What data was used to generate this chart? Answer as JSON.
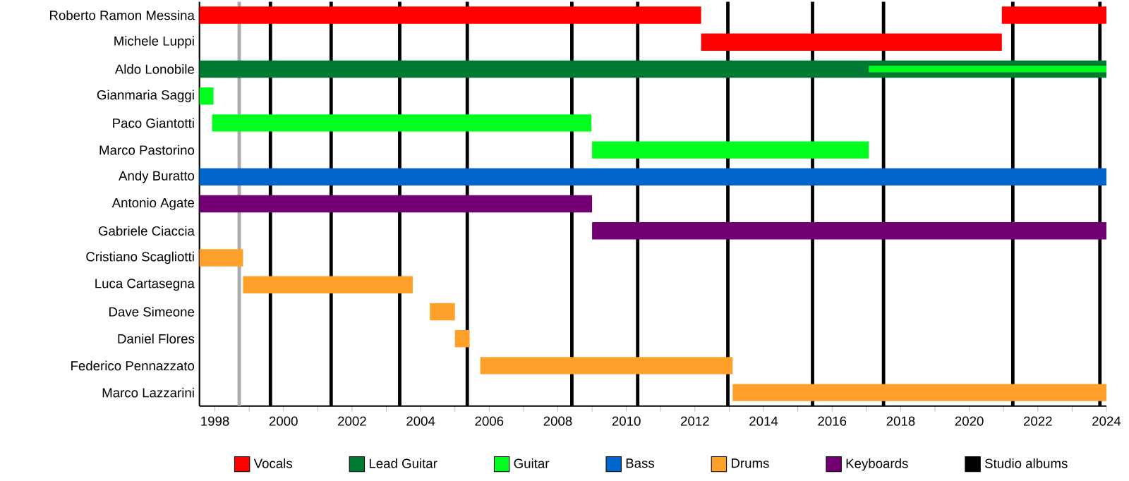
{
  "chart_data": {
    "type": "bar",
    "orientation": "horizontal",
    "categories": [
      "Roberto Ramon Messina",
      "Michele Luppi",
      "Aldo Lonobile",
      "Gianmaria Saggi",
      "Paco Giantotti",
      "Marco Pastorino",
      "Andy Buratto",
      "Antonio Agate",
      "Gabriele Ciaccia",
      "Cristiano Scagliotti",
      "Luca Cartasegna",
      "Dave Simeone",
      "Daniel Flores",
      "Federico Pennazzato",
      "Marco Lazzarini"
    ],
    "series": [
      {
        "name": "Vocals",
        "color": "#ff0000",
        "values": [
          14.63,
          8.77,
          null,
          null,
          null,
          null,
          null,
          null,
          null,
          null,
          null,
          null,
          null,
          null,
          null
        ],
        "base": [
          1997.55,
          2012.18,
          null,
          null,
          null,
          null,
          null,
          null,
          null,
          null,
          null,
          null,
          null,
          null,
          null
        ]
      },
      {
        "color": "#ff0000",
        "values": [
          3.05,
          null,
          null,
          null,
          null,
          null,
          null,
          null,
          null,
          null,
          null,
          null,
          null,
          null,
          null
        ],
        "base": [
          2020.95,
          null,
          null,
          null,
          null,
          null,
          null,
          null,
          null,
          null,
          null,
          null,
          null,
          null,
          null
        ]
      },
      {
        "name": "Lead Guitar",
        "color": "#007a33",
        "values": [
          null,
          null,
          26.45,
          null,
          null,
          null,
          null,
          null,
          null,
          null,
          null,
          null,
          null,
          null,
          null
        ],
        "base": [
          null,
          null,
          1997.55,
          null,
          null,
          null,
          null,
          null,
          null,
          null,
          null,
          null,
          null,
          null,
          null
        ]
      },
      {
        "name": "Guitar",
        "color": "#00ff1f",
        "values": [
          null,
          null,
          6.93,
          0.41,
          11.06,
          8.07,
          null,
          null,
          null,
          null,
          null,
          null,
          null,
          null,
          null
        ],
        "base": [
          null,
          null,
          2017.07,
          1997.55,
          1997.92,
          2009.0,
          null,
          null,
          null,
          null,
          null,
          null,
          null,
          null,
          null
        ]
      },
      {
        "name": "Bass",
        "color": "#0066cc",
        "values": [
          null,
          null,
          null,
          null,
          null,
          null,
          26.45,
          null,
          null,
          null,
          null,
          null,
          null,
          null,
          null
        ],
        "base": [
          null,
          null,
          null,
          null,
          null,
          null,
          1997.55,
          null,
          null,
          null,
          null,
          null,
          null,
          null,
          null
        ]
      },
      {
        "name": "Drums",
        "color": "#ffa02a",
        "values": [
          null,
          null,
          null,
          null,
          null,
          null,
          null,
          null,
          null,
          1.27,
          4.95,
          0.73,
          0.43,
          7.36,
          10.9
        ],
        "base": [
          null,
          null,
          null,
          null,
          null,
          null,
          null,
          null,
          null,
          1997.55,
          1998.82,
          2004.27,
          2005.0,
          2005.74,
          2013.1
        ]
      },
      {
        "name": "Keyboards",
        "color": "#730073",
        "values": [
          null,
          null,
          null,
          null,
          null,
          null,
          null,
          11.45,
          15.0,
          null,
          null,
          null,
          null,
          null,
          null
        ],
        "base": [
          null,
          null,
          null,
          null,
          null,
          null,
          null,
          1997.55,
          2009.0,
          null,
          null,
          null,
          null,
          null,
          null
        ]
      }
    ],
    "xlim": [
      1997.55,
      2024
    ],
    "xticks": [
      1998,
      {
        "value": 1999,
        "label": null
      },
      2000,
      {
        "value": 2001,
        "label": null
      },
      2002,
      {
        "value": 2003,
        "label": null
      },
      2004,
      {
        "value": 2005,
        "label": null
      },
      2006,
      {
        "value": 2007,
        "label": null
      },
      2008,
      {
        "value": 2009,
        "label": null
      },
      2010,
      {
        "value": 2011,
        "label": null
      },
      2012,
      {
        "value": 2013,
        "label": null
      },
      2014,
      {
        "value": 2015,
        "label": null
      },
      2016,
      {
        "value": 2017,
        "label": null
      },
      2018,
      {
        "value": 2019,
        "label": null
      },
      2020,
      {
        "value": 2021,
        "label": null
      },
      2022,
      {
        "value": 2023,
        "label": null
      },
      2024
    ],
    "ref_lines": [
      {
        "axis": "x",
        "value": 1998.71,
        "color": "#aaaaaa"
      },
      {
        "axis": "x",
        "value": 1999.62,
        "color": "#000000",
        "label": "Studio albums"
      },
      {
        "axis": "x",
        "value": 2001.39,
        "color": "#000000"
      },
      {
        "axis": "x",
        "value": 2003.39,
        "color": "#000000"
      },
      {
        "axis": "x",
        "value": 2005.36,
        "color": "#000000"
      },
      {
        "axis": "x",
        "value": 2008.41,
        "color": "#000000"
      },
      {
        "axis": "x",
        "value": 2010.33,
        "color": "#000000"
      },
      {
        "axis": "x",
        "value": 2012.96,
        "color": "#000000"
      },
      {
        "axis": "x",
        "value": 2015.43,
        "color": "#000000"
      },
      {
        "axis": "x",
        "value": 2017.5,
        "color": "#000000"
      },
      {
        "axis": "x",
        "value": 2021.27,
        "color": "#000000"
      },
      {
        "axis": "x",
        "value": 2023.81,
        "color": "#000000"
      }
    ],
    "legend": "bottom"
  }
}
